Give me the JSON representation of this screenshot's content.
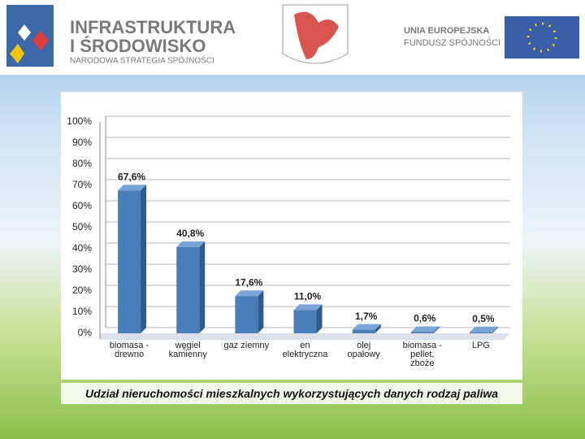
{
  "header": {
    "logo_left_line1": "INFRASTRUKTURA",
    "logo_left_line2": "I ŚRODOWISKO",
    "logo_left_line3": "NARODOWA STRATEGIA SPÓJNOŚCI",
    "logo_right_line1": "UNIA EUROPEJSKA",
    "logo_right_line2": "FUNDUSZ SPÓJNOŚCI"
  },
  "chart_data": {
    "type": "bar",
    "title": "Udział nieruchomości mieszkalnych wykorzystujących danych rodzaj paliwa",
    "categories": [
      "biomasa -\ndrewno",
      "węgiel\nkamienny",
      "gaz ziemny",
      "en\nelektryczna",
      "olej\nopałowy",
      "biomasa -\npellet,\nzboże",
      "LPG"
    ],
    "values": [
      67.6,
      40.8,
      17.6,
      11.0,
      1.7,
      0.6,
      0.5
    ],
    "value_labels": [
      "67,6%",
      "40,8%",
      "17,6%",
      "11,0%",
      "1,7%",
      "0,6%",
      "0,5%"
    ],
    "color": "#4a7ebb",
    "ylim": [
      0,
      100
    ],
    "yticks": [
      {
        "value": 0,
        "label": "0%"
      },
      {
        "value": 10,
        "label": "10%"
      },
      {
        "value": 20,
        "label": "20%"
      },
      {
        "value": 30,
        "label": "30%"
      },
      {
        "value": 40,
        "label": "40%"
      },
      {
        "value": 50,
        "label": "50%"
      },
      {
        "value": 60,
        "label": "60%"
      },
      {
        "value": 70,
        "label": "70%"
      },
      {
        "value": 80,
        "label": "80%"
      },
      {
        "value": 90,
        "label": "90%"
      },
      {
        "value": 100,
        "label": "100%"
      }
    ],
    "grid": true
  }
}
